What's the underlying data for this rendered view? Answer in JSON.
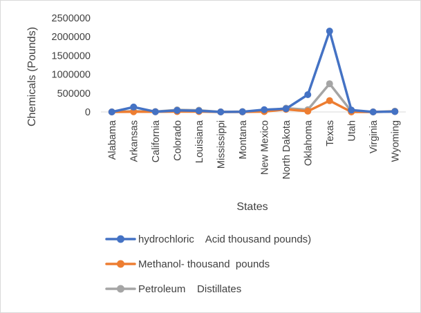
{
  "chart_data": {
    "type": "line",
    "xlabel": "States",
    "ylabel": "Chemicals (Pounds)",
    "ylim": [
      0,
      2500000
    ],
    "yticks": [
      "0",
      "500000",
      "1000000",
      "1500000",
      "2000000",
      "2500000"
    ],
    "categories": [
      "Alabama",
      "Arkansas",
      "California",
      "Colorado",
      "Louisiana",
      "Mississippi",
      "Montana",
      "New Mexico",
      "North Dakota",
      "Oklahoma",
      "Texas",
      "Utah",
      "Virginia",
      "Wyoming"
    ],
    "grid": false,
    "legend_position": "bottom",
    "series": [
      {
        "name": "hydrochloric    Acid thousand pounds)",
        "color": "#4472C4",
        "values": [
          0,
          130000,
          5000,
          40000,
          30000,
          0,
          5000,
          60000,
          85000,
          460000,
          2150000,
          50000,
          0,
          10000
        ]
      },
      {
        "name": "Methanol- thousand  pounds",
        "color": "#ED7D31",
        "values": [
          0,
          5000,
          5000,
          10000,
          10000,
          0,
          0,
          10000,
          70000,
          20000,
          300000,
          0,
          0,
          10000
        ]
      },
      {
        "name": "Petroleum    Distillates",
        "color": "#A5A5A5",
        "values": [
          0,
          20000,
          10000,
          55000,
          45000,
          0,
          10000,
          30000,
          100000,
          60000,
          750000,
          15000,
          0,
          20000
        ]
      }
    ]
  }
}
